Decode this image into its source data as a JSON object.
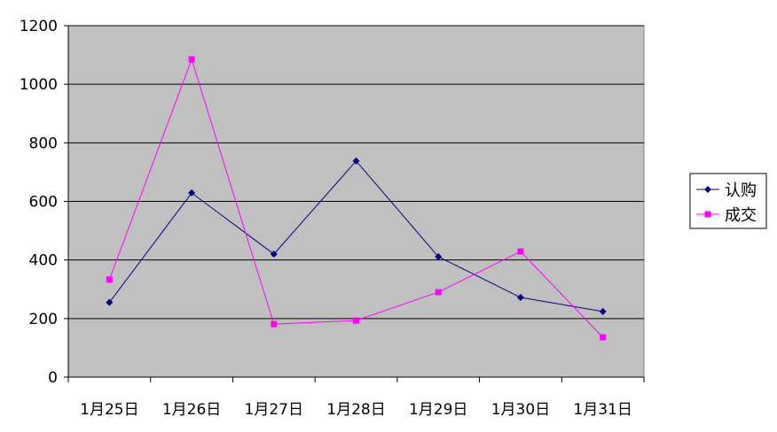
{
  "chart_data": {
    "type": "line",
    "title": "",
    "xlabel": "",
    "ylabel": "",
    "categories": [
      "1月25日",
      "1月26日",
      "1月27日",
      "1月28日",
      "1月29日",
      "1月30日",
      "1月31日"
    ],
    "ylim": [
      0,
      1200
    ],
    "yticks": [
      0,
      200,
      400,
      600,
      800,
      1000,
      1200
    ],
    "grid": true,
    "plot_background": "#C0C0C0",
    "legend_position": "right",
    "series": [
      {
        "name": "认购",
        "color": "#000080",
        "marker": "diamond",
        "values": [
          255,
          629,
          420,
          738,
          411,
          272,
          224
        ]
      },
      {
        "name": "成交",
        "color": "#FF00FF",
        "marker": "square",
        "values": [
          333,
          1085,
          181,
          193,
          290,
          429,
          136
        ]
      }
    ]
  }
}
